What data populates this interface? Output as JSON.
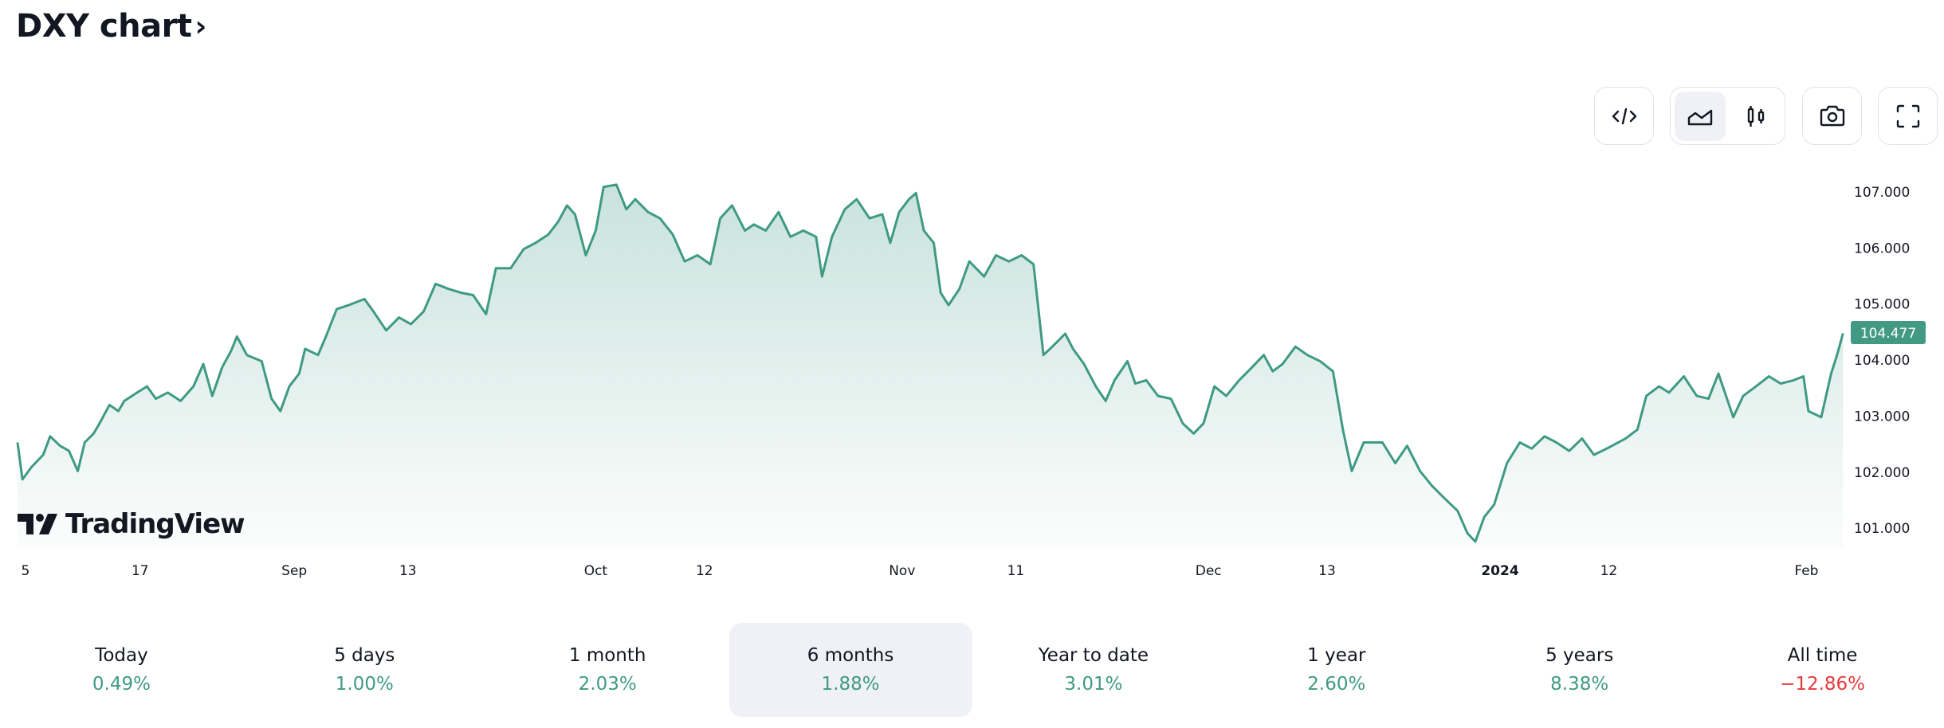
{
  "header": {
    "title": "DXY chart",
    "chevron": "›"
  },
  "toolbar": {
    "icons": [
      "code-embed-icon",
      "area-chart-icon",
      "candlestick-icon",
      "camera-icon",
      "fullscreen-icon"
    ],
    "active_chart_type": "area"
  },
  "watermark": "TradingView",
  "colors": {
    "line": "#3f9a83",
    "up": "#3f9a83",
    "down": "#e5393c",
    "badge": "#439a84",
    "selected_tab_bg": "#f0f1f6"
  },
  "chart_data": {
    "type": "area",
    "title": "DXY",
    "xlabel": "",
    "ylabel": "",
    "x_unit": "days since start of range",
    "ylim": [
      100.6,
      107.4
    ],
    "y_ticks": [
      "107.000",
      "106.000",
      "105.000",
      "104.000",
      "103.000",
      "102.000",
      "101.000"
    ],
    "y_tick_values": [
      107,
      106,
      105,
      104,
      103,
      102,
      101
    ],
    "x_ticks": [
      {
        "label": "5",
        "day": 0.8
      },
      {
        "label": "17",
        "day": 12.4
      },
      {
        "label": "Sep",
        "day": 28
      },
      {
        "label": "13",
        "day": 39.5
      },
      {
        "label": "Oct",
        "day": 58.5
      },
      {
        "label": "12",
        "day": 69.5
      },
      {
        "label": "Nov",
        "day": 89.5
      },
      {
        "label": "11",
        "day": 101
      },
      {
        "label": "Dec",
        "day": 120.5
      },
      {
        "label": "13",
        "day": 132.5
      },
      {
        "label": "2024",
        "day": 150
      },
      {
        "label": "12",
        "day": 161
      },
      {
        "label": "Feb",
        "day": 181
      }
    ],
    "last_price": "104.477",
    "x": [
      0,
      0.5,
      1.4,
      2.6,
      3.3,
      4.3,
      5.2,
      6.1,
      6.8,
      7.7,
      8.3,
      9.3,
      10.2,
      10.8,
      12.1,
      13.1,
      14,
      15.2,
      16.5,
      17.8,
      18.8,
      19.7,
      20.7,
      21.6,
      22.2,
      23.2,
      24.7,
      25.7,
      26.6,
      27.5,
      28.5,
      29.1,
      30.4,
      31.2,
      32.3,
      33.5,
      35.1,
      36,
      37.3,
      38.6,
      39.8,
      41.1,
      42.3,
      43.6,
      44.9,
      46.1,
      47.4,
      48.4,
      49.9,
      51.2,
      52.4,
      53.7,
      54.7,
      55.6,
      56.4,
      57.5,
      58.5,
      59.3,
      60.6,
      61.6,
      62.5,
      63.8,
      65,
      66.3,
      67.5,
      68.8,
      70.1,
      71.1,
      72.3,
      73.6,
      74.5,
      75.7,
      77,
      78.2,
      79.5,
      80.8,
      81.4,
      82.4,
      83.7,
      84.9,
      86.2,
      87.5,
      88.3,
      89.2,
      90.2,
      90.9,
      91.7,
      92.7,
      93.4,
      94.2,
      95.3,
      96.3,
      97.8,
      99,
      100.3,
      101.6,
      102.8,
      103.8,
      104.7,
      106,
      106.8,
      107.9,
      109.1,
      110.1,
      111,
      112.3,
      113.1,
      114.2,
      115.4,
      116.7,
      117.9,
      119,
      120,
      121.1,
      122.3,
      123.6,
      124.9,
      126.1,
      127,
      128,
      129.3,
      130.5,
      131.8,
      133.1,
      134.1,
      135,
      136.2,
      138.1,
      139.4,
      140.6,
      141.9,
      143.1,
      144.4,
      145.7,
      146.7,
      147.5,
      148.4,
      149.4,
      150.7,
      152,
      153.2,
      154.5,
      155.7,
      157,
      158.3,
      159.5,
      160.8,
      162.7,
      163.9,
      164.8,
      166.1,
      167.1,
      168.6,
      169.9,
      171.1,
      172.1,
      173.6,
      174.6,
      175.9,
      177.2,
      178.4,
      179.7,
      180.7,
      181.2,
      182.5,
      183.5,
      184.1,
      184.7
    ],
    "values": [
      102.53,
      101.87,
      102.09,
      102.31,
      102.64,
      102.47,
      102.38,
      102.02,
      102.53,
      102.69,
      102.87,
      103.2,
      103.09,
      103.27,
      103.42,
      103.53,
      103.31,
      103.42,
      103.27,
      103.53,
      103.93,
      103.36,
      103.87,
      104.16,
      104.42,
      104.09,
      103.98,
      103.31,
      103.09,
      103.53,
      103.76,
      104.2,
      104.09,
      104.42,
      104.91,
      104.98,
      105.09,
      104.87,
      104.53,
      104.76,
      104.64,
      104.87,
      105.36,
      105.27,
      105.2,
      105.16,
      104.82,
      105.64,
      105.64,
      105.98,
      106.09,
      106.24,
      106.47,
      106.76,
      106.6,
      105.87,
      106.31,
      107.09,
      107.13,
      106.69,
      106.87,
      106.64,
      106.53,
      106.24,
      105.76,
      105.87,
      105.71,
      106.53,
      106.76,
      106.31,
      106.42,
      106.31,
      106.64,
      106.2,
      106.31,
      106.2,
      105.49,
      106.2,
      106.69,
      106.87,
      106.53,
      106.6,
      106.09,
      106.64,
      106.87,
      106.98,
      106.31,
      106.09,
      105.2,
      104.98,
      105.27,
      105.76,
      105.49,
      105.87,
      105.76,
      105.87,
      105.71,
      104.09,
      104.24,
      104.47,
      104.2,
      103.93,
      103.53,
      103.27,
      103.64,
      103.98,
      103.58,
      103.64,
      103.36,
      103.31,
      102.87,
      102.69,
      102.87,
      103.53,
      103.36,
      103.64,
      103.87,
      104.09,
      103.8,
      103.93,
      104.24,
      104.09,
      103.98,
      103.8,
      102.76,
      102.02,
      102.53,
      102.53,
      102.16,
      102.47,
      102.02,
      101.76,
      101.53,
      101.31,
      100.91,
      100.76,
      101.2,
      101.42,
      102.16,
      102.53,
      102.42,
      102.64,
      102.53,
      102.38,
      102.6,
      102.31,
      102.42,
      102.6,
      102.76,
      103.36,
      103.53,
      103.42,
      103.71,
      103.36,
      103.31,
      103.76,
      102.98,
      103.36,
      103.53,
      103.71,
      103.58,
      103.64,
      103.71,
      103.09,
      102.98,
      103.76,
      104.09,
      104.477
    ]
  },
  "periods": [
    {
      "label": "Today",
      "value": "0.49%",
      "dir": "up"
    },
    {
      "label": "5 days",
      "value": "1.00%",
      "dir": "up"
    },
    {
      "label": "1 month",
      "value": "2.03%",
      "dir": "up"
    },
    {
      "label": "6 months",
      "value": "1.88%",
      "dir": "up",
      "selected": true
    },
    {
      "label": "Year to date",
      "value": "3.01%",
      "dir": "up"
    },
    {
      "label": "1 year",
      "value": "2.60%",
      "dir": "up"
    },
    {
      "label": "5 years",
      "value": "8.38%",
      "dir": "up"
    },
    {
      "label": "All time",
      "value": "−12.86%",
      "dir": "down"
    }
  ]
}
